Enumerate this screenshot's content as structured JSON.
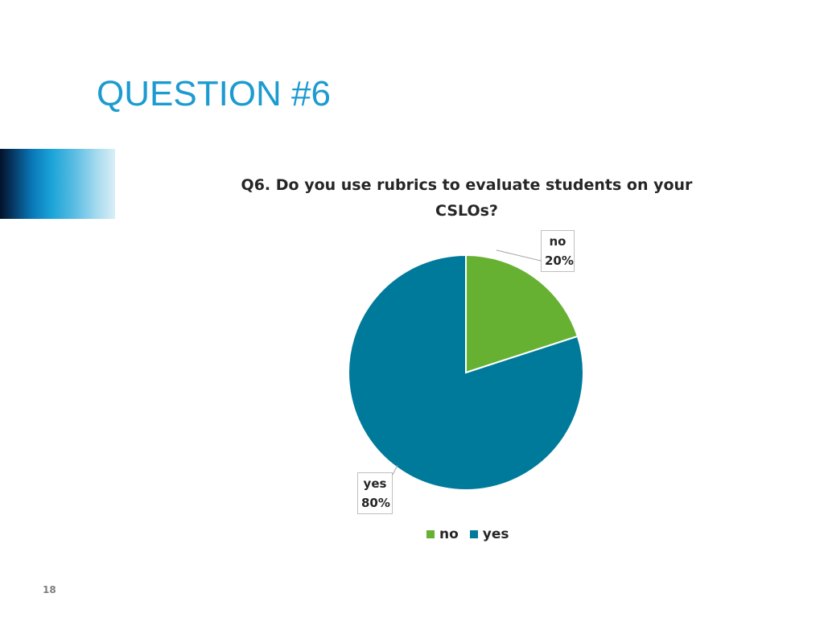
{
  "slide": {
    "title": "QUESTION #6",
    "page_number": "18"
  },
  "colors": {
    "title": "#1c9bd0",
    "no": "#66b132",
    "yes": "#007a9b"
  },
  "chart_data": {
    "type": "pie",
    "title": "Q6. Do you use rubrics to evaluate students on your CSLOs?",
    "categories": [
      "no",
      "yes"
    ],
    "values": [
      20,
      80
    ],
    "unit": "%",
    "labels": [
      {
        "category": "no",
        "value": "20%"
      },
      {
        "category": "yes",
        "value": "80%"
      }
    ],
    "legend": {
      "position": "bottom",
      "entries": [
        "no",
        "yes"
      ]
    }
  }
}
